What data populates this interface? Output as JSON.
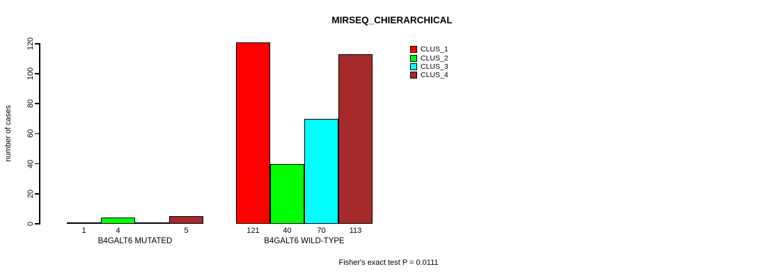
{
  "chart_data": {
    "type": "bar",
    "title": "MIRSEQ_CHIERARCHICAL",
    "ylabel": "number of cases",
    "xlabel": "",
    "ylim": [
      0,
      120
    ],
    "yticks": [
      0,
      20,
      40,
      60,
      80,
      100,
      120
    ],
    "grid": false,
    "legend_position": "top-right-inside",
    "series": [
      {
        "name": "CLUS_1",
        "color": "#FF0000"
      },
      {
        "name": "CLUS_2",
        "color": "#00FF00"
      },
      {
        "name": "CLUS_3",
        "color": "#00FFFF"
      },
      {
        "name": "CLUS_4",
        "color": "#A52A2A"
      }
    ],
    "groups": [
      {
        "label": "B4GALT6 MUTATED",
        "values": [
          1,
          4,
          0,
          5
        ],
        "value_labels": [
          "1",
          "4",
          "",
          "5"
        ]
      },
      {
        "label": "B4GALT6 WILD-TYPE",
        "values": [
          121,
          40,
          70,
          113
        ],
        "value_labels": [
          "121",
          "40",
          "70",
          "113"
        ]
      }
    ],
    "annotation": "Fisher's exact test P = 0.0111"
  }
}
